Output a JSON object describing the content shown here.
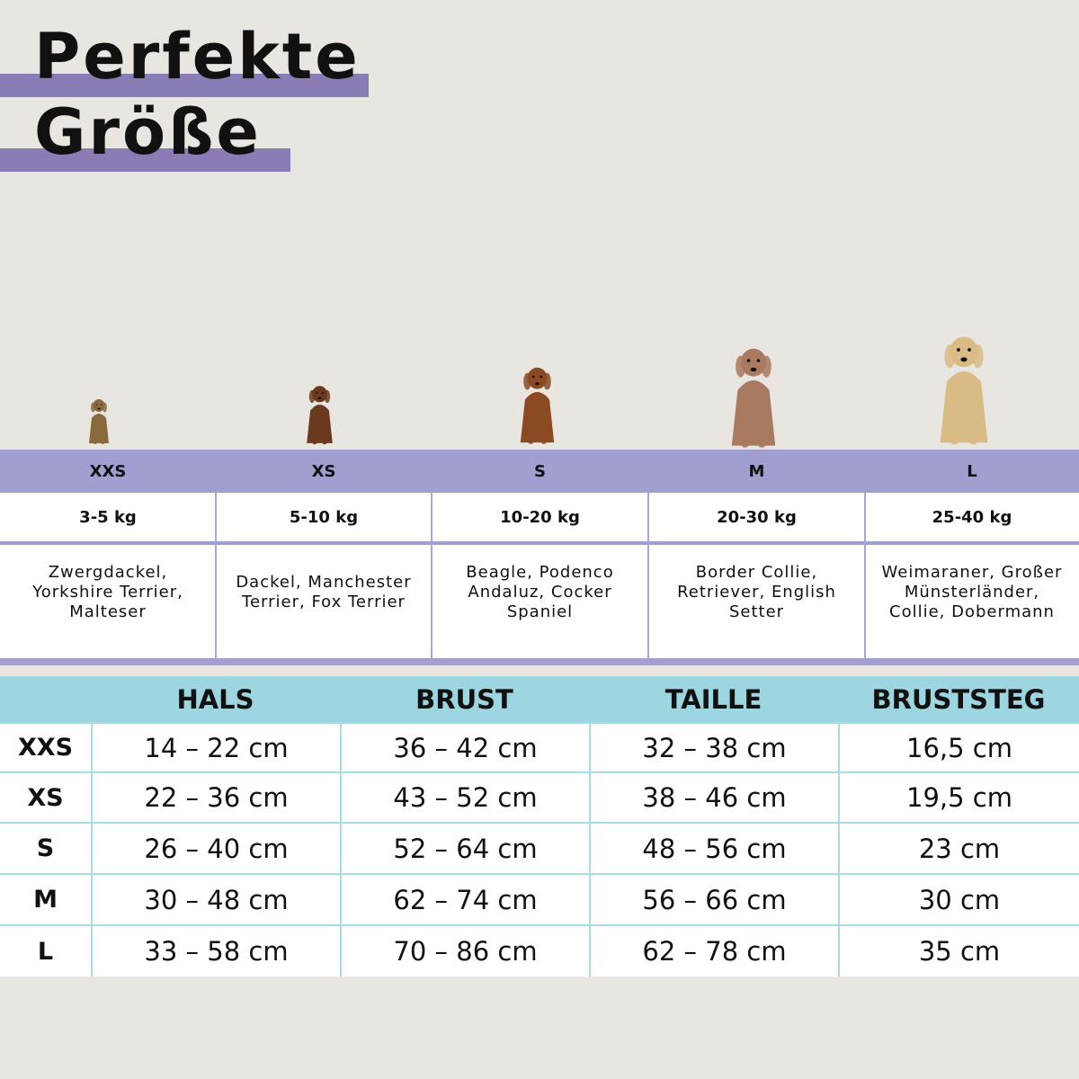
{
  "title": {
    "line1": "Perfekte",
    "line2": "Größe"
  },
  "colors": {
    "background": "#e9e5e1",
    "purple_bar": "#8b7cb6",
    "size_band": "#a09fd0",
    "table_header": "#9dd5e0",
    "table_lines": "#a8dbe6"
  },
  "sizes": [
    {
      "label": "XXS",
      "weight": "3-5 kg",
      "breeds": [
        "Zwergdackel,",
        "Yorkshire Terrier,",
        "Malteser"
      ],
      "dog_icon": "yorkshire-terrier-photo"
    },
    {
      "label": "XS",
      "weight": "5-10 kg",
      "breeds": [
        "Dackel, Manchester",
        "Terrier, Fox Terrier"
      ],
      "dog_icon": "dachshund-photo"
    },
    {
      "label": "S",
      "weight": "10-20 kg",
      "breeds": [
        "Beagle, Podenco",
        "Andaluz, Cocker",
        "Spaniel"
      ],
      "dog_icon": "cocker-spaniel-photo"
    },
    {
      "label": "M",
      "weight": "20-30 kg",
      "breeds": [
        "Border Collie,",
        "Retriever, English",
        "Setter"
      ],
      "dog_icon": "australian-shepherd-photo"
    },
    {
      "label": "L",
      "weight": "25-40 kg",
      "breeds": [
        "Weimaraner, Großer",
        "Münsterländer,",
        "Collie, Dobermann"
      ],
      "dog_icon": "golden-retriever-photo"
    }
  ],
  "measurements": {
    "headers": [
      "",
      "HALS",
      "BRUST",
      "TAILLE",
      "BRUSTSTEG"
    ],
    "rows": [
      [
        "XXS",
        "14 – 22 cm",
        "36 – 42 cm",
        "32 – 38 cm",
        "16,5 cm"
      ],
      [
        "XS",
        "22 – 36 cm",
        "43 – 52 cm",
        "38 – 46 cm",
        "19,5 cm"
      ],
      [
        "S",
        "26 – 40 cm",
        "52 – 64 cm",
        "48 – 56 cm",
        "23 cm"
      ],
      [
        "M",
        "30 – 48 cm",
        "62 – 74 cm",
        "56 – 66 cm",
        "30 cm"
      ],
      [
        "L",
        "33 – 58 cm",
        "70 – 86 cm",
        "62 – 78 cm",
        "35 cm"
      ]
    ]
  }
}
